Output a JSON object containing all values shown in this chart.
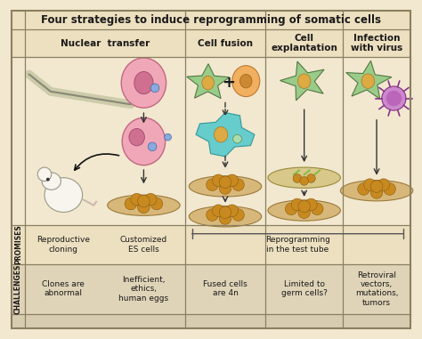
{
  "title": "Four strategies to induce reprogramming of somatic cells",
  "bg_main": "#f2e8d0",
  "bg_header": "#ede0c0",
  "bg_promises": "#ede0c0",
  "bg_challenges": "#e0d4b8",
  "bg_bottom": "#d8ccb0",
  "border_color": "#8a8060",
  "text_color": "#1a1a1a",
  "figsize": [
    4.74,
    3.81
  ],
  "dpi": 100,
  "title_text": "Four strategies to induce reprogramming of somatic cells",
  "col_headers": [
    "Nuclear  transfer",
    "Cell fusion",
    "Cell\nexplantation",
    "Infection\nwith virus"
  ],
  "promises_row1": [
    "Reproductive\ncloning",
    "Customized\nES cells"
  ],
  "promises_row2": "Reprogramming\nin the test tube",
  "challenges": [
    "Clones are\nabnormal",
    "Inefficient,\nethics,\nhuman eggs",
    "Fused cells\nare 4n",
    "Limited to\ngerm cells?",
    "Retroviral\nvectors,\nmutations,\ntumors"
  ],
  "left_lbl_promises": "PROMISES",
  "left_lbl_challenges": "CHALLENGES"
}
